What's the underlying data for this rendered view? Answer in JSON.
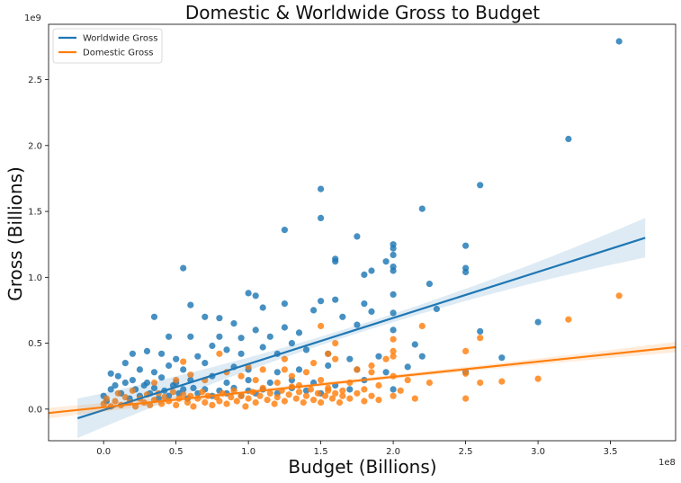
{
  "chart_data": {
    "type": "scatter",
    "title": "Domestic & Worldwide Gross to Budget",
    "xlabel": "Budget (Billions)",
    "ylabel": "Gross (Billions)",
    "x_offset_text": "1e8",
    "y_offset_text": "1e9",
    "xlim": [
      -0.38,
      3.95
    ],
    "ylim": [
      -0.24,
      2.92
    ],
    "x_ticks": [
      0.0,
      0.5,
      1.0,
      1.5,
      2.0,
      2.5,
      3.0,
      3.5
    ],
    "x_tick_labels": [
      "0.0",
      "0.5",
      "1.0",
      "1.5",
      "2.0",
      "2.5",
      "3.0",
      "3.5"
    ],
    "y_ticks": [
      0.0,
      0.5,
      1.0,
      1.5,
      2.0,
      2.5
    ],
    "y_tick_labels": [
      "0.0",
      "0.5",
      "1.0",
      "1.5",
      "2.0",
      "2.5"
    ],
    "grid": false,
    "legend_position": "top-left",
    "series": [
      {
        "name": "Worldwide Gross",
        "color": "#1f77b4",
        "points": [
          [
            3.56,
            2.79
          ],
          [
            3.21,
            2.05
          ],
          [
            2.6,
            1.7
          ],
          [
            2.2,
            1.52
          ],
          [
            1.5,
            1.67
          ],
          [
            1.5,
            1.45
          ],
          [
            1.25,
            1.36
          ],
          [
            1.6,
            1.14
          ],
          [
            1.6,
            1.12
          ],
          [
            1.75,
            1.31
          ],
          [
            2.0,
            1.25
          ],
          [
            2.0,
            1.22
          ],
          [
            2.0,
            1.17
          ],
          [
            2.0,
            1.08
          ],
          [
            2.0,
            1.05
          ],
          [
            1.95,
            1.12
          ],
          [
            1.85,
            1.05
          ],
          [
            1.8,
            1.02
          ],
          [
            2.5,
            1.24
          ],
          [
            2.5,
            1.07
          ],
          [
            2.5,
            1.04
          ],
          [
            2.25,
            0.95
          ],
          [
            0.55,
            1.07
          ],
          [
            1.0,
            0.88
          ],
          [
            1.05,
            0.86
          ],
          [
            1.5,
            0.82
          ],
          [
            1.6,
            0.83
          ],
          [
            1.8,
            0.8
          ],
          [
            2.0,
            0.87
          ],
          [
            1.25,
            0.8
          ],
          [
            0.6,
            0.79
          ],
          [
            0.35,
            0.7
          ],
          [
            0.7,
            0.7
          ],
          [
            0.8,
            0.69
          ],
          [
            1.1,
            0.77
          ],
          [
            1.45,
            0.75
          ],
          [
            1.65,
            0.7
          ],
          [
            1.85,
            0.74
          ],
          [
            2.0,
            0.73
          ],
          [
            2.3,
            0.76
          ],
          [
            3.0,
            0.66
          ],
          [
            0.9,
            0.65
          ],
          [
            1.25,
            0.62
          ],
          [
            1.75,
            0.64
          ],
          [
            2.0,
            0.6
          ],
          [
            2.6,
            0.59
          ],
          [
            2.75,
            0.39
          ],
          [
            2.15,
            0.49
          ],
          [
            1.35,
            0.58
          ],
          [
            0.6,
            0.55
          ],
          [
            0.8,
            0.55
          ],
          [
            0.95,
            0.54
          ],
          [
            1.05,
            0.6
          ],
          [
            1.15,
            0.55
          ],
          [
            1.3,
            0.5
          ],
          [
            0.45,
            0.55
          ],
          [
            0.2,
            0.42
          ],
          [
            0.3,
            0.44
          ],
          [
            0.4,
            0.42
          ],
          [
            0.5,
            0.38
          ],
          [
            0.65,
            0.4
          ],
          [
            0.75,
            0.48
          ],
          [
            0.85,
            0.45
          ],
          [
            0.95,
            0.42
          ],
          [
            1.1,
            0.47
          ],
          [
            1.2,
            0.42
          ],
          [
            1.4,
            0.45
          ],
          [
            1.55,
            0.42
          ],
          [
            1.7,
            0.38
          ],
          [
            1.9,
            0.4
          ],
          [
            2.2,
            0.4
          ],
          [
            0.15,
            0.35
          ],
          [
            0.25,
            0.3
          ],
          [
            0.35,
            0.28
          ],
          [
            0.45,
            0.33
          ],
          [
            0.55,
            0.3
          ],
          [
            0.7,
            0.35
          ],
          [
            0.9,
            0.32
          ],
          [
            1.0,
            0.3
          ],
          [
            1.2,
            0.28
          ],
          [
            1.35,
            0.3
          ],
          [
            1.55,
            0.33
          ],
          [
            1.75,
            0.3
          ],
          [
            1.95,
            0.28
          ],
          [
            2.1,
            0.32
          ],
          [
            2.5,
            0.28
          ],
          [
            0.05,
            0.27
          ],
          [
            0.1,
            0.25
          ],
          [
            0.2,
            0.22
          ],
          [
            0.3,
            0.2
          ],
          [
            0.4,
            0.24
          ],
          [
            0.5,
            0.2
          ],
          [
            0.6,
            0.22
          ],
          [
            0.75,
            0.25
          ],
          [
            0.85,
            0.2
          ],
          [
            1.0,
            0.22
          ],
          [
            1.15,
            0.2
          ],
          [
            1.3,
            0.22
          ],
          [
            1.45,
            0.2
          ],
          [
            1.6,
            0.18
          ],
          [
            1.8,
            0.22
          ],
          [
            0.0,
            0.1
          ],
          [
            0.02,
            0.06
          ],
          [
            0.05,
            0.15
          ],
          [
            0.08,
            0.18
          ],
          [
            0.12,
            0.12
          ],
          [
            0.15,
            0.2
          ],
          [
            0.18,
            0.08
          ],
          [
            0.22,
            0.15
          ],
          [
            0.25,
            0.1
          ],
          [
            0.28,
            0.18
          ],
          [
            0.32,
            0.12
          ],
          [
            0.35,
            0.16
          ],
          [
            0.38,
            0.08
          ],
          [
            0.42,
            0.14
          ],
          [
            0.45,
            0.1
          ],
          [
            0.48,
            0.18
          ],
          [
            0.52,
            0.12
          ],
          [
            0.55,
            0.15
          ],
          [
            0.58,
            0.08
          ],
          [
            0.62,
            0.16
          ],
          [
            0.65,
            0.12
          ],
          [
            0.7,
            0.15
          ],
          [
            0.75,
            0.1
          ],
          [
            0.8,
            0.14
          ],
          [
            0.85,
            0.12
          ],
          [
            0.9,
            0.16
          ],
          [
            0.95,
            0.1
          ],
          [
            1.0,
            0.14
          ],
          [
            1.05,
            0.12
          ],
          [
            1.1,
            0.15
          ],
          [
            1.2,
            0.12
          ],
          [
            1.3,
            0.16
          ],
          [
            1.4,
            0.14
          ],
          [
            1.5,
            0.12
          ],
          [
            1.7,
            0.15
          ],
          [
            2.0,
            0.15
          ]
        ]
      },
      {
        "name": "Domestic Gross",
        "color": "#ff7f0e",
        "points": [
          [
            3.56,
            0.86
          ],
          [
            3.21,
            0.68
          ],
          [
            2.6,
            0.54
          ],
          [
            2.5,
            0.44
          ],
          [
            2.5,
            0.27
          ],
          [
            2.5,
            0.08
          ],
          [
            2.75,
            0.21
          ],
          [
            2.6,
            0.2
          ],
          [
            3.0,
            0.23
          ],
          [
            2.25,
            0.2
          ],
          [
            2.2,
            0.63
          ],
          [
            2.0,
            0.53
          ],
          [
            2.0,
            0.44
          ],
          [
            2.0,
            0.4
          ],
          [
            1.95,
            0.38
          ],
          [
            1.85,
            0.33
          ],
          [
            1.5,
            0.63
          ],
          [
            1.6,
            0.5
          ],
          [
            1.55,
            0.42
          ],
          [
            1.45,
            0.35
          ],
          [
            1.6,
            0.38
          ],
          [
            1.75,
            0.3
          ],
          [
            1.85,
            0.28
          ],
          [
            2.0,
            0.25
          ],
          [
            2.1,
            0.22
          ],
          [
            2.15,
            0.08
          ],
          [
            2.0,
            0.1
          ],
          [
            1.25,
            0.38
          ],
          [
            1.25,
            0.3
          ],
          [
            1.4,
            0.28
          ],
          [
            0.55,
            0.36
          ],
          [
            0.8,
            0.42
          ],
          [
            1.0,
            0.32
          ],
          [
            1.1,
            0.3
          ],
          [
            1.3,
            0.25
          ],
          [
            1.5,
            0.22
          ],
          [
            1.7,
            0.2
          ],
          [
            1.9,
            0.18
          ],
          [
            0.35,
            0.2
          ],
          [
            0.5,
            0.22
          ],
          [
            0.6,
            0.26
          ],
          [
            0.7,
            0.22
          ],
          [
            0.85,
            0.28
          ],
          [
            0.95,
            0.25
          ],
          [
            1.05,
            0.22
          ],
          [
            1.2,
            0.2
          ],
          [
            1.35,
            0.18
          ],
          [
            1.55,
            0.16
          ],
          [
            1.65,
            0.14
          ],
          [
            1.8,
            0.15
          ],
          [
            2.05,
            0.14
          ],
          [
            0.0,
            0.04
          ],
          [
            0.02,
            0.08
          ],
          [
            0.05,
            0.02
          ],
          [
            0.08,
            0.06
          ],
          [
            0.1,
            0.12
          ],
          [
            0.12,
            0.03
          ],
          [
            0.15,
            0.09
          ],
          [
            0.18,
            0.05
          ],
          [
            0.2,
            0.14
          ],
          [
            0.22,
            0.02
          ],
          [
            0.25,
            0.08
          ],
          [
            0.28,
            0.05
          ],
          [
            0.3,
            0.11
          ],
          [
            0.32,
            0.03
          ],
          [
            0.35,
            0.07
          ],
          [
            0.38,
            0.12
          ],
          [
            0.4,
            0.04
          ],
          [
            0.42,
            0.09
          ],
          [
            0.45,
            0.06
          ],
          [
            0.48,
            0.13
          ],
          [
            0.5,
            0.03
          ],
          [
            0.52,
            0.08
          ],
          [
            0.55,
            0.11
          ],
          [
            0.58,
            0.05
          ],
          [
            0.6,
            0.1
          ],
          [
            0.62,
            0.02
          ],
          [
            0.65,
            0.08
          ],
          [
            0.68,
            0.13
          ],
          [
            0.7,
            0.05
          ],
          [
            0.72,
            0.1
          ],
          [
            0.75,
            0.03
          ],
          [
            0.78,
            0.09
          ],
          [
            0.8,
            0.06
          ],
          [
            0.82,
            0.12
          ],
          [
            0.85,
            0.04
          ],
          [
            0.88,
            0.09
          ],
          [
            0.9,
            0.14
          ],
          [
            0.92,
            0.06
          ],
          [
            0.95,
            0.1
          ],
          [
            0.98,
            0.02
          ],
          [
            1.0,
            0.08
          ],
          [
            1.03,
            0.13
          ],
          [
            1.05,
            0.05
          ],
          [
            1.08,
            0.1
          ],
          [
            1.1,
            0.16
          ],
          [
            1.13,
            0.07
          ],
          [
            1.15,
            0.12
          ],
          [
            1.18,
            0.04
          ],
          [
            1.2,
            0.09
          ],
          [
            1.23,
            0.14
          ],
          [
            1.25,
            0.06
          ],
          [
            1.28,
            0.11
          ],
          [
            1.3,
            0.17
          ],
          [
            1.33,
            0.08
          ],
          [
            1.35,
            0.13
          ],
          [
            1.38,
            0.05
          ],
          [
            1.4,
            0.1
          ],
          [
            1.43,
            0.15
          ],
          [
            1.45,
            0.07
          ],
          [
            1.48,
            0.12
          ],
          [
            1.5,
            0.05
          ],
          [
            1.53,
            0.1
          ],
          [
            1.55,
            0.14
          ],
          [
            1.58,
            0.08
          ],
          [
            1.6,
            0.12
          ],
          [
            1.63,
            0.05
          ],
          [
            1.65,
            0.1
          ],
          [
            1.7,
            0.08
          ],
          [
            1.75,
            0.12
          ],
          [
            1.8,
            0.06
          ],
          [
            1.85,
            0.1
          ],
          [
            1.9,
            0.07
          ]
        ]
      }
    ],
    "regression_lines": [
      {
        "series": "Worldwide Gross",
        "x": [
          -0.18,
          3.74
        ],
        "y": [
          -0.07,
          1.3
        ],
        "ci_halfwidth": [
          0.03,
          0.15
        ]
      },
      {
        "series": "Domestic Gross",
        "x": [
          -0.38,
          3.95
        ],
        "y": [
          -0.03,
          0.47
        ],
        "ci_halfwidth": [
          0.015,
          0.04
        ]
      }
    ]
  }
}
